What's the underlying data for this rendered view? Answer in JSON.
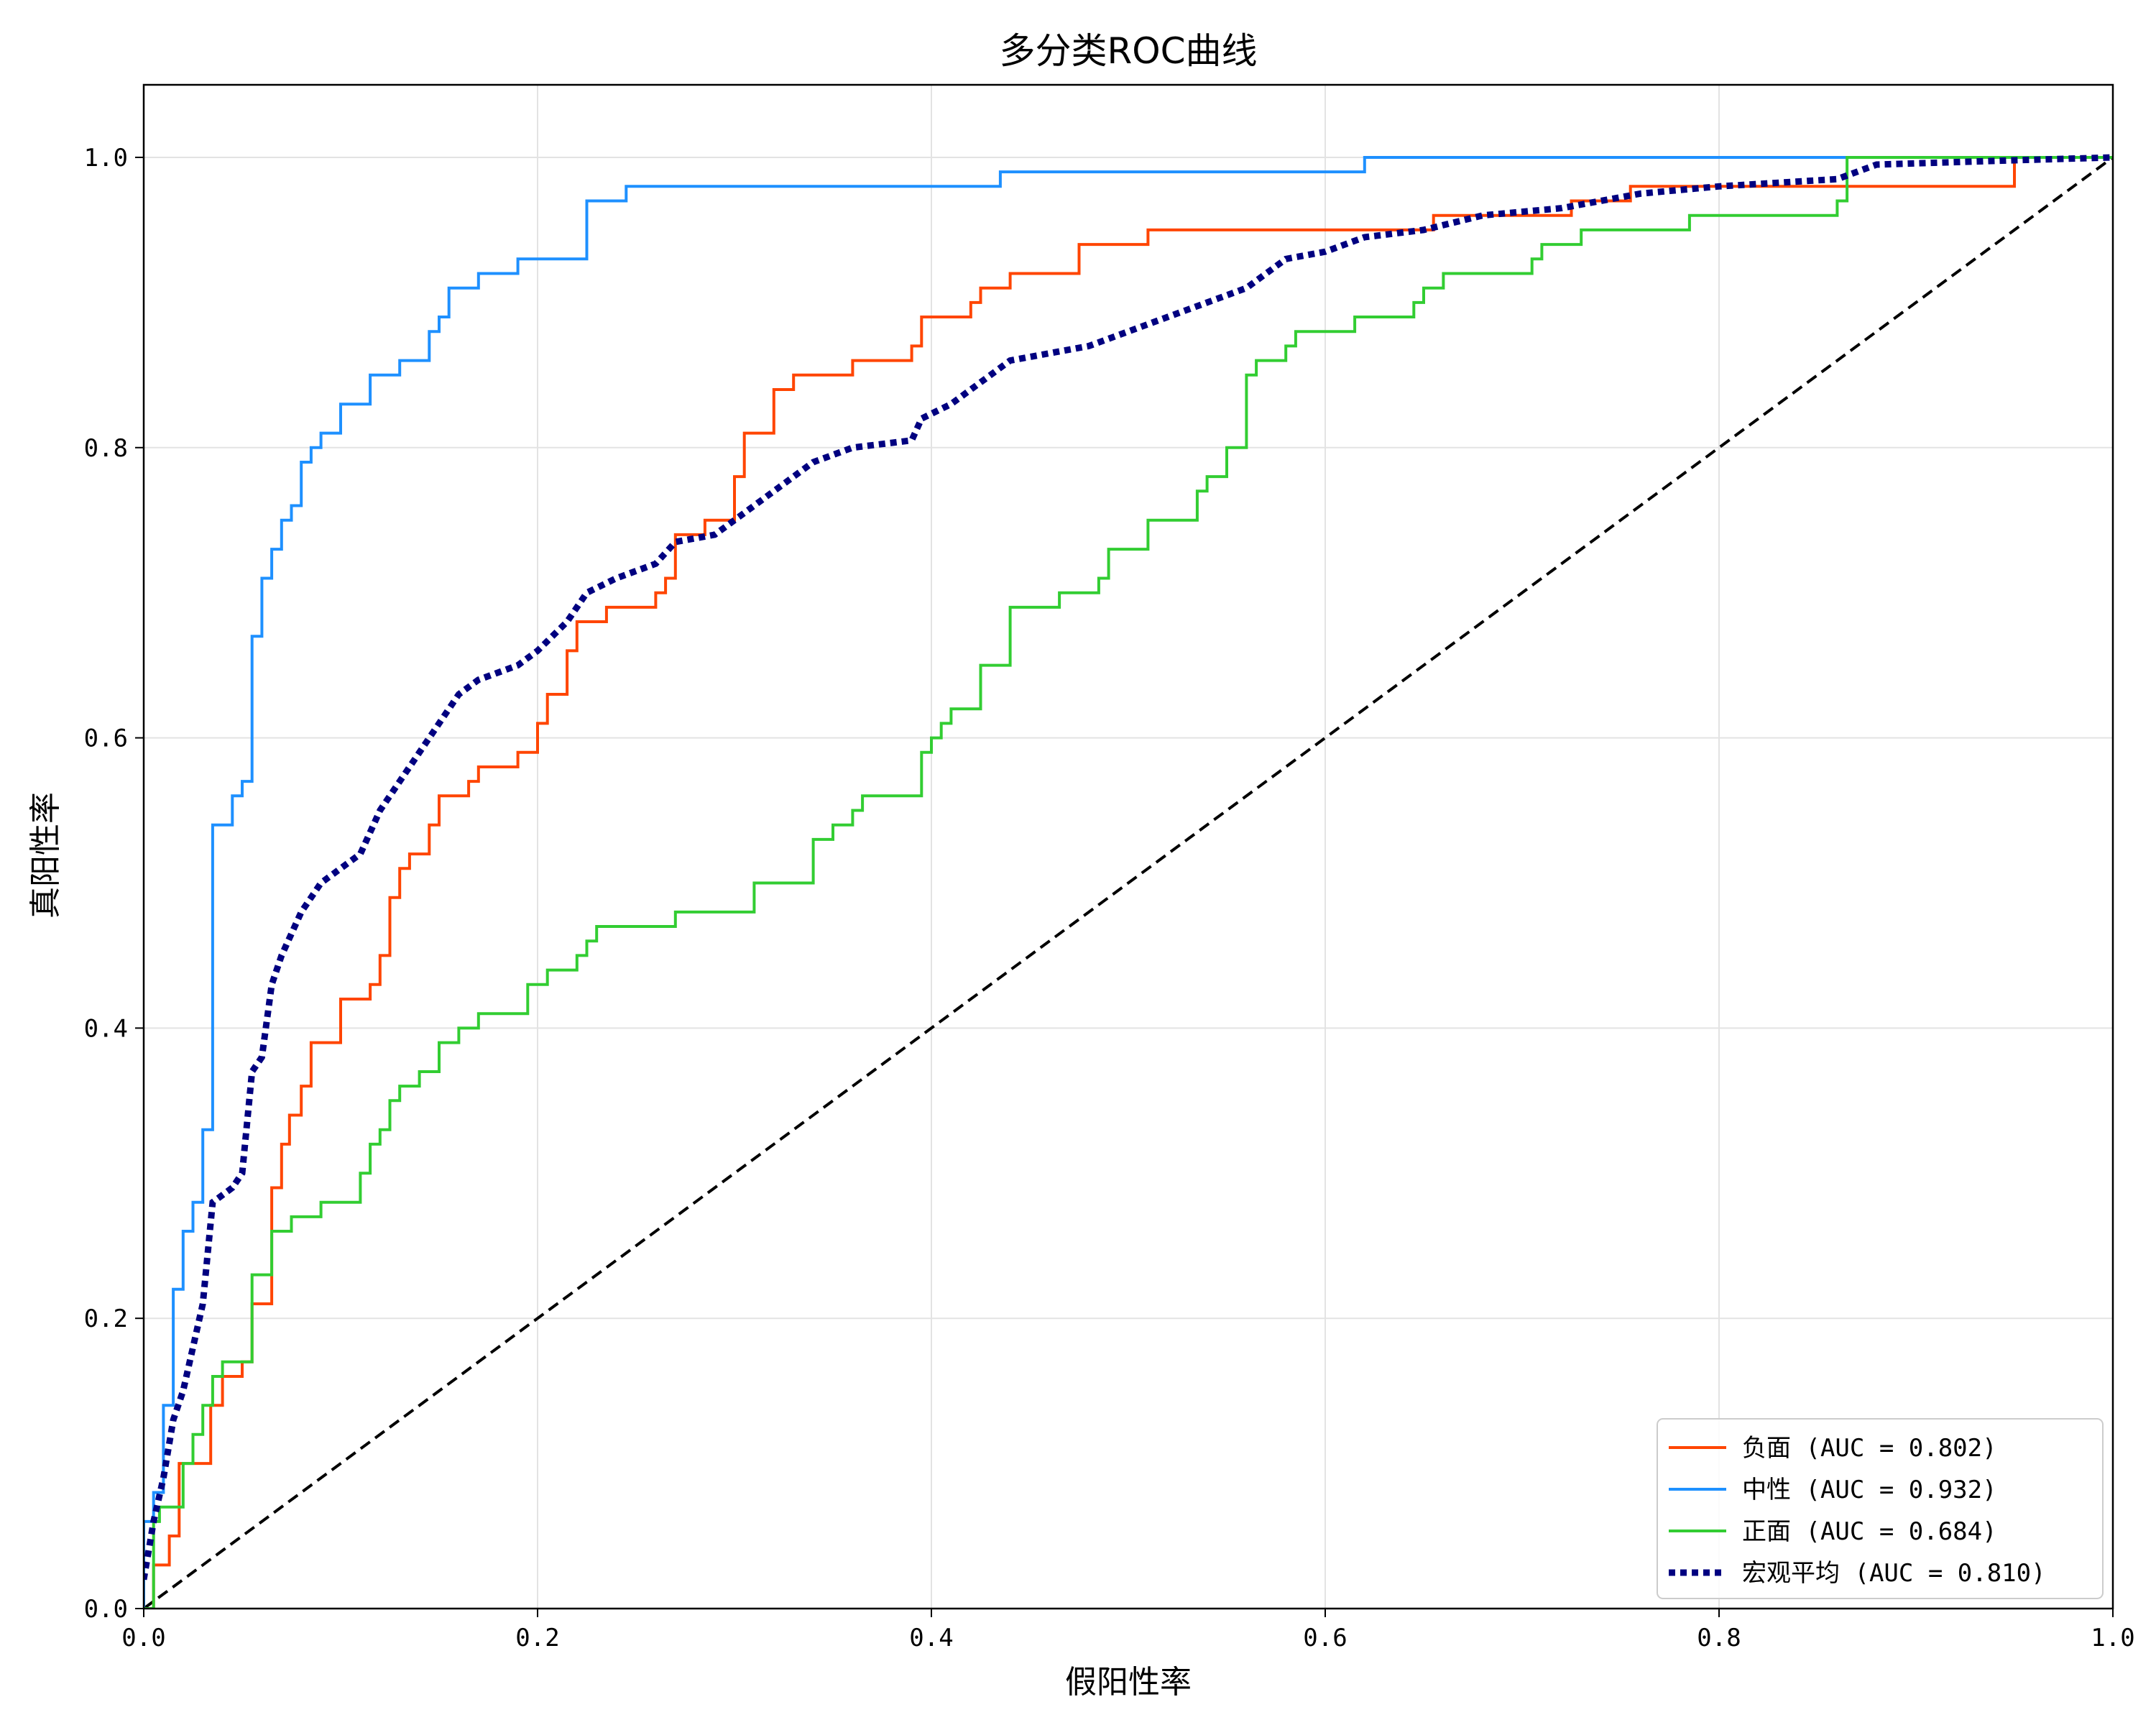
{
  "chart_data": {
    "type": "line",
    "title": "多分类ROC曲线",
    "xlabel": "假阳性率",
    "ylabel": "真阳性率",
    "xlim": [
      0,
      1
    ],
    "ylim": [
      0,
      1.05
    ],
    "xticks": [
      "0.0",
      "0.2",
      "0.4",
      "0.6",
      "0.8",
      "1.0"
    ],
    "yticks": [
      "0.0",
      "0.2",
      "0.4",
      "0.6",
      "0.8",
      "1.0"
    ],
    "grid": true,
    "legend_position": "lower-right",
    "series": [
      {
        "name": "负面 (AUC = 0.802)",
        "color": "#ff4500",
        "style": "solid",
        "step": true,
        "points": [
          [
            0,
            0
          ],
          [
            0.005,
            0.03
          ],
          [
            0.013,
            0.05
          ],
          [
            0.018,
            0.1
          ],
          [
            0.034,
            0.14
          ],
          [
            0.04,
            0.16
          ],
          [
            0.05,
            0.17
          ],
          [
            0.055,
            0.21
          ],
          [
            0.065,
            0.29
          ],
          [
            0.07,
            0.32
          ],
          [
            0.074,
            0.34
          ],
          [
            0.08,
            0.36
          ],
          [
            0.085,
            0.39
          ],
          [
            0.1,
            0.42
          ],
          [
            0.115,
            0.43
          ],
          [
            0.12,
            0.45
          ],
          [
            0.125,
            0.49
          ],
          [
            0.13,
            0.51
          ],
          [
            0.135,
            0.52
          ],
          [
            0.145,
            0.54
          ],
          [
            0.15,
            0.56
          ],
          [
            0.165,
            0.57
          ],
          [
            0.17,
            0.58
          ],
          [
            0.19,
            0.59
          ],
          [
            0.2,
            0.61
          ],
          [
            0.205,
            0.63
          ],
          [
            0.215,
            0.66
          ],
          [
            0.22,
            0.68
          ],
          [
            0.235,
            0.69
          ],
          [
            0.26,
            0.7
          ],
          [
            0.265,
            0.71
          ],
          [
            0.27,
            0.74
          ],
          [
            0.285,
            0.75
          ],
          [
            0.3,
            0.78
          ],
          [
            0.305,
            0.81
          ],
          [
            0.32,
            0.84
          ],
          [
            0.33,
            0.85
          ],
          [
            0.36,
            0.86
          ],
          [
            0.39,
            0.87
          ],
          [
            0.395,
            0.89
          ],
          [
            0.42,
            0.9
          ],
          [
            0.425,
            0.91
          ],
          [
            0.44,
            0.92
          ],
          [
            0.475,
            0.94
          ],
          [
            0.51,
            0.95
          ],
          [
            0.655,
            0.96
          ],
          [
            0.725,
            0.97
          ],
          [
            0.755,
            0.98
          ],
          [
            0.95,
            1.0
          ],
          [
            1.0,
            1.0
          ]
        ]
      },
      {
        "name": "中性 (AUC = 0.932)",
        "color": "#1e90ff",
        "style": "solid",
        "step": true,
        "points": [
          [
            0,
            0
          ],
          [
            0,
            0.06
          ],
          [
            0.005,
            0.08
          ],
          [
            0.01,
            0.14
          ],
          [
            0.015,
            0.22
          ],
          [
            0.02,
            0.26
          ],
          [
            0.025,
            0.28
          ],
          [
            0.03,
            0.33
          ],
          [
            0.035,
            0.54
          ],
          [
            0.045,
            0.56
          ],
          [
            0.05,
            0.57
          ],
          [
            0.055,
            0.67
          ],
          [
            0.06,
            0.71
          ],
          [
            0.065,
            0.73
          ],
          [
            0.07,
            0.75
          ],
          [
            0.075,
            0.76
          ],
          [
            0.08,
            0.79
          ],
          [
            0.085,
            0.8
          ],
          [
            0.09,
            0.81
          ],
          [
            0.1,
            0.83
          ],
          [
            0.115,
            0.85
          ],
          [
            0.13,
            0.86
          ],
          [
            0.145,
            0.88
          ],
          [
            0.15,
            0.89
          ],
          [
            0.155,
            0.91
          ],
          [
            0.17,
            0.92
          ],
          [
            0.19,
            0.93
          ],
          [
            0.225,
            0.97
          ],
          [
            0.245,
            0.98
          ],
          [
            0.435,
            0.99
          ],
          [
            0.62,
            1.0
          ],
          [
            1.0,
            1.0
          ]
        ]
      },
      {
        "name": "正面 (AUC = 0.684)",
        "color": "#32cd32",
        "style": "solid",
        "step": true,
        "points": [
          [
            0,
            0
          ],
          [
            0.005,
            0.06
          ],
          [
            0.008,
            0.07
          ],
          [
            0.02,
            0.1
          ],
          [
            0.025,
            0.12
          ],
          [
            0.03,
            0.14
          ],
          [
            0.035,
            0.16
          ],
          [
            0.04,
            0.17
          ],
          [
            0.055,
            0.23
          ],
          [
            0.065,
            0.26
          ],
          [
            0.075,
            0.27
          ],
          [
            0.09,
            0.28
          ],
          [
            0.11,
            0.3
          ],
          [
            0.115,
            0.32
          ],
          [
            0.12,
            0.33
          ],
          [
            0.125,
            0.35
          ],
          [
            0.13,
            0.36
          ],
          [
            0.14,
            0.37
          ],
          [
            0.15,
            0.39
          ],
          [
            0.16,
            0.4
          ],
          [
            0.17,
            0.41
          ],
          [
            0.195,
            0.43
          ],
          [
            0.205,
            0.44
          ],
          [
            0.22,
            0.45
          ],
          [
            0.225,
            0.46
          ],
          [
            0.23,
            0.47
          ],
          [
            0.27,
            0.48
          ],
          [
            0.31,
            0.5
          ],
          [
            0.34,
            0.53
          ],
          [
            0.35,
            0.54
          ],
          [
            0.36,
            0.55
          ],
          [
            0.365,
            0.56
          ],
          [
            0.395,
            0.59
          ],
          [
            0.4,
            0.6
          ],
          [
            0.405,
            0.61
          ],
          [
            0.41,
            0.62
          ],
          [
            0.425,
            0.65
          ],
          [
            0.44,
            0.69
          ],
          [
            0.465,
            0.7
          ],
          [
            0.485,
            0.71
          ],
          [
            0.49,
            0.73
          ],
          [
            0.51,
            0.75
          ],
          [
            0.535,
            0.77
          ],
          [
            0.54,
            0.78
          ],
          [
            0.55,
            0.8
          ],
          [
            0.56,
            0.85
          ],
          [
            0.565,
            0.86
          ],
          [
            0.58,
            0.87
          ],
          [
            0.585,
            0.88
          ],
          [
            0.615,
            0.89
          ],
          [
            0.645,
            0.9
          ],
          [
            0.65,
            0.91
          ],
          [
            0.66,
            0.92
          ],
          [
            0.705,
            0.93
          ],
          [
            0.71,
            0.94
          ],
          [
            0.73,
            0.95
          ],
          [
            0.785,
            0.96
          ],
          [
            0.86,
            0.97
          ],
          [
            0.865,
            1.0
          ],
          [
            1.0,
            1.0
          ]
        ]
      },
      {
        "name": "宏观平均 (AUC = 0.810)",
        "color": "#000080",
        "style": "dotted",
        "step": false,
        "points": [
          [
            0,
            0.02
          ],
          [
            0.005,
            0.06
          ],
          [
            0.01,
            0.09
          ],
          [
            0.015,
            0.13
          ],
          [
            0.02,
            0.15
          ],
          [
            0.025,
            0.18
          ],
          [
            0.03,
            0.21
          ],
          [
            0.035,
            0.28
          ],
          [
            0.045,
            0.29
          ],
          [
            0.05,
            0.3
          ],
          [
            0.055,
            0.37
          ],
          [
            0.06,
            0.38
          ],
          [
            0.065,
            0.43
          ],
          [
            0.07,
            0.45
          ],
          [
            0.08,
            0.48
          ],
          [
            0.09,
            0.5
          ],
          [
            0.1,
            0.51
          ],
          [
            0.11,
            0.52
          ],
          [
            0.12,
            0.55
          ],
          [
            0.13,
            0.57
          ],
          [
            0.14,
            0.59
          ],
          [
            0.15,
            0.61
          ],
          [
            0.16,
            0.63
          ],
          [
            0.17,
            0.64
          ],
          [
            0.19,
            0.65
          ],
          [
            0.2,
            0.66
          ],
          [
            0.215,
            0.68
          ],
          [
            0.225,
            0.7
          ],
          [
            0.24,
            0.71
          ],
          [
            0.26,
            0.72
          ],
          [
            0.27,
            0.735
          ],
          [
            0.29,
            0.74
          ],
          [
            0.3,
            0.75
          ],
          [
            0.32,
            0.77
          ],
          [
            0.34,
            0.79
          ],
          [
            0.36,
            0.8
          ],
          [
            0.39,
            0.805
          ],
          [
            0.395,
            0.82
          ],
          [
            0.41,
            0.83
          ],
          [
            0.42,
            0.84
          ],
          [
            0.44,
            0.86
          ],
          [
            0.46,
            0.865
          ],
          [
            0.48,
            0.87
          ],
          [
            0.5,
            0.88
          ],
          [
            0.52,
            0.89
          ],
          [
            0.54,
            0.9
          ],
          [
            0.56,
            0.91
          ],
          [
            0.58,
            0.93
          ],
          [
            0.6,
            0.935
          ],
          [
            0.62,
            0.945
          ],
          [
            0.65,
            0.95
          ],
          [
            0.68,
            0.96
          ],
          [
            0.72,
            0.965
          ],
          [
            0.76,
            0.975
          ],
          [
            0.8,
            0.98
          ],
          [
            0.86,
            0.985
          ],
          [
            0.88,
            0.995
          ],
          [
            0.95,
            0.998
          ],
          [
            1.0,
            1.0
          ]
        ]
      }
    ],
    "diagonal": {
      "color": "#000000",
      "style": "dashed",
      "from": [
        0,
        0
      ],
      "to": [
        1,
        1
      ]
    }
  }
}
